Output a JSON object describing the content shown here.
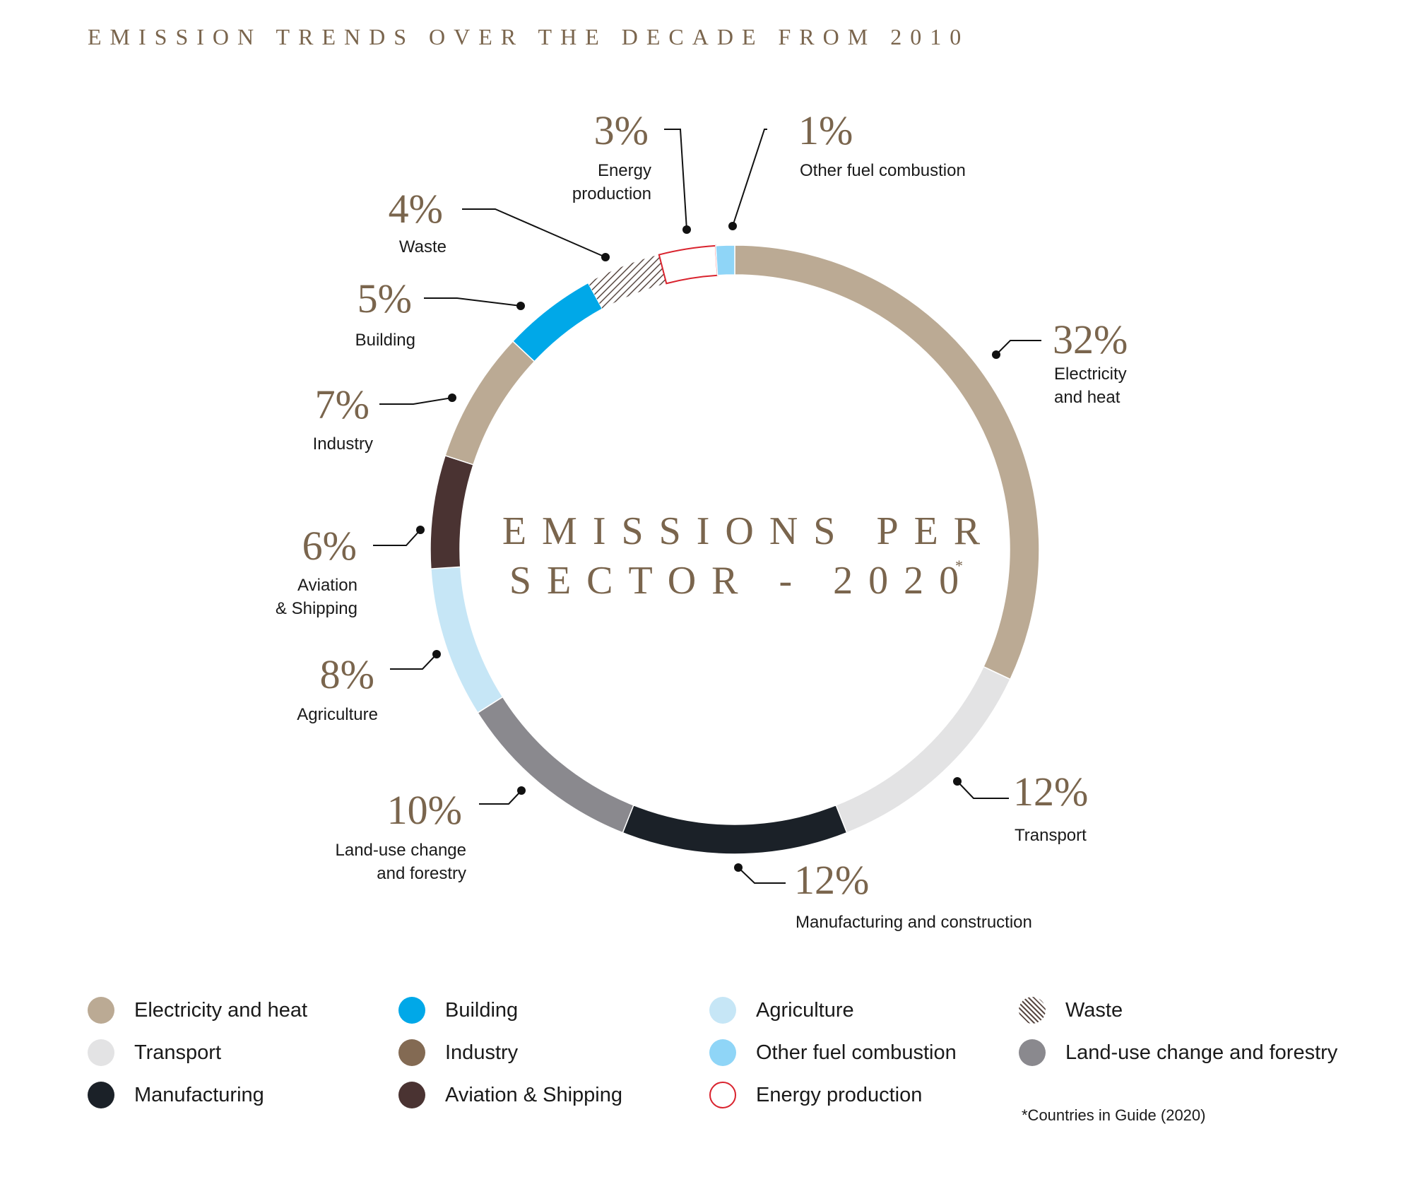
{
  "header": {
    "title": "EMISSION TRENDS OVER THE DECADE FROM 2010"
  },
  "center": {
    "line1": "EMISSIONS PER",
    "line2": "SECTOR - 2020",
    "mark": "*"
  },
  "chart_data": {
    "type": "pie",
    "title": "EMISSIONS PER SECTOR - 2020",
    "unit": "%",
    "slices": [
      {
        "label": "Electricity and heat",
        "callout": [
          "Electricity",
          "and heat"
        ],
        "pct_text": "32%",
        "value": 32,
        "color": "#bbaa94"
      },
      {
        "label": "Transport",
        "callout": [
          "Transport"
        ],
        "pct_text": "12%",
        "value": 12,
        "color": "#e3e3e4"
      },
      {
        "label": "Manufacturing and construction",
        "callout": [
          "Manufacturing and construction"
        ],
        "pct_text": "12%",
        "value": 12,
        "color": "#1b2128"
      },
      {
        "label": "Land-use change and forestry",
        "callout": [
          "Land-use change",
          "and forestry"
        ],
        "pct_text": "10%",
        "value": 10,
        "color": "#8a898e"
      },
      {
        "label": "Agriculture",
        "callout": [
          "Agriculture"
        ],
        "pct_text": "8%",
        "value": 8,
        "color": "#c6e6f6"
      },
      {
        "label": "Aviation & Shipping",
        "callout": [
          "Aviation",
          "& Shipping"
        ],
        "pct_text": "6%",
        "value": 6,
        "color": "#4a3332"
      },
      {
        "label": "Industry",
        "callout": [
          "Industry"
        ],
        "pct_text": "7%",
        "value": 7,
        "color": "#bbaa94"
      },
      {
        "label": "Building",
        "callout": [
          "Building"
        ],
        "pct_text": "5%",
        "value": 5,
        "color": "#00a8e8"
      },
      {
        "label": "Waste",
        "callout": [
          "Waste"
        ],
        "pct_text": "4%",
        "value": 4,
        "color": "hatched"
      },
      {
        "label": "Energy production",
        "callout": [
          "Energy",
          "production"
        ],
        "pct_text": "3%",
        "value": 3,
        "color": "outline-red"
      },
      {
        "label": "Other fuel combustion",
        "callout": [
          "Other fuel combustion"
        ],
        "pct_text": "1%",
        "value": 1,
        "color": "#8fd5f7"
      }
    ],
    "legend": [
      {
        "label": "Electricity and heat",
        "color": "#bbaa94",
        "style": "fill"
      },
      {
        "label": "Transport",
        "color": "#e3e3e4",
        "style": "fill"
      },
      {
        "label": "Manufacturing",
        "color": "#1b2128",
        "style": "fill"
      },
      {
        "label": "Building",
        "color": "#00a8e8",
        "style": "fill"
      },
      {
        "label": "Industry",
        "color": "#836a53",
        "style": "fill"
      },
      {
        "label": "Aviation & Shipping",
        "color": "#4a3332",
        "style": "fill"
      },
      {
        "label": "Agriculture",
        "color": "#c6e6f6",
        "style": "fill"
      },
      {
        "label": "Other fuel combustion",
        "color": "#8fd5f7",
        "style": "fill"
      },
      {
        "label": "Energy production",
        "color": "#d9232e",
        "style": "outline"
      },
      {
        "label": "Waste",
        "color": "#5a4a44",
        "style": "hatch"
      },
      {
        "label": "Land-use change and forestry",
        "color": "#8a898e",
        "style": "fill"
      }
    ],
    "legend_placement": "bottom"
  },
  "footnote": "*Countries in Guide (2020)"
}
